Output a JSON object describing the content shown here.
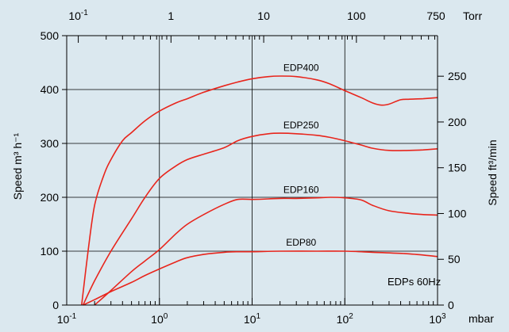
{
  "chart_data": {
    "type": "line",
    "x_scale": "log",
    "xlim": [
      0.1,
      1000
    ],
    "ylim": [
      0,
      500
    ],
    "grid": true,
    "background_color": "#dbe8ef",
    "line_color": "#e8251c",
    "ylabel": "Speed m³ h⁻¹",
    "ylabel_right": "Speed ft³/min",
    "x_unit_bottom": "mbar",
    "x_unit_top": "Torr",
    "annotation": "EDPs 60Hz",
    "x_ticks_bottom": [
      {
        "value": 0.1,
        "base": "10",
        "exp": "-1"
      },
      {
        "value": 1,
        "base": "10",
        "exp": "0"
      },
      {
        "value": 10,
        "base": "10",
        "exp": "1"
      },
      {
        "value": 100,
        "base": "10",
        "exp": "2"
      },
      {
        "value": 1000,
        "base": "10",
        "exp": "3"
      }
    ],
    "x_ticks_top": [
      {
        "label_base": "10",
        "label_exp": "-1",
        "torr": 0.1
      },
      {
        "label_base": "1",
        "label_exp": "",
        "torr": 1
      },
      {
        "label_base": "10",
        "label_exp": "",
        "torr": 10
      },
      {
        "label_base": "100",
        "label_exp": "",
        "torr": 100
      },
      {
        "label_base": "750",
        "label_exp": "",
        "torr": 750
      }
    ],
    "y_ticks_left": [
      0,
      100,
      200,
      300,
      400,
      500
    ],
    "y_ticks_right": [
      {
        "label": "0",
        "value": 0
      },
      {
        "label": "50",
        "value": 50
      },
      {
        "label": "100",
        "value": 100
      },
      {
        "label": "150",
        "value": 150
      },
      {
        "label": "200",
        "value": 200
      },
      {
        "label": "250",
        "value": 250
      }
    ],
    "right_axis_factor": 0.5886,
    "series": [
      {
        "name": "EDP400",
        "x": [
          0.145,
          0.17,
          0.2,
          0.25,
          0.3,
          0.4,
          0.5,
          0.7,
          1,
          1.5,
          2,
          3,
          5,
          7,
          10,
          15,
          20,
          30,
          50,
          70,
          100,
          150,
          200,
          250,
          300,
          400,
          500,
          700,
          1000
        ],
        "y": [
          0,
          100,
          185,
          240,
          270,
          305,
          320,
          342,
          360,
          375,
          383,
          395,
          407,
          414,
          420,
          424,
          425,
          424,
          418,
          410,
          398,
          385,
          375,
          371,
          373,
          381,
          382,
          383,
          385
        ]
      },
      {
        "name": "EDP250",
        "x": [
          0.15,
          0.2,
          0.3,
          0.5,
          0.7,
          1,
          1.5,
          2,
          3,
          5,
          7,
          10,
          15,
          20,
          30,
          50,
          70,
          100,
          150,
          200,
          300,
          500,
          700,
          1000
        ],
        "y": [
          0,
          45,
          100,
          160,
          200,
          235,
          258,
          270,
          280,
          292,
          305,
          313,
          318,
          319,
          318,
          315,
          311,
          305,
          297,
          291,
          287,
          287,
          288,
          290
        ]
      },
      {
        "name": "EDP160",
        "x": [
          0.2,
          0.3,
          0.5,
          0.7,
          1,
          1.5,
          2,
          3,
          5,
          7,
          10,
          15,
          20,
          30,
          50,
          70,
          100,
          150,
          200,
          300,
          500,
          700,
          1000
        ],
        "y": [
          0,
          27,
          62,
          82,
          103,
          132,
          150,
          168,
          187,
          196,
          196,
          197,
          198,
          198,
          199,
          200,
          199,
          195,
          185,
          175,
          170,
          168,
          167
        ]
      },
      {
        "name": "EDP80",
        "x": [
          0.15,
          0.2,
          0.3,
          0.5,
          0.7,
          1,
          1.5,
          2,
          3,
          5,
          7,
          10,
          20,
          50,
          100,
          200,
          500,
          1000
        ],
        "y": [
          0,
          10,
          25,
          42,
          55,
          67,
          80,
          88,
          94,
          98,
          99,
          99,
          100,
          100,
          100,
          98,
          95,
          90
        ]
      }
    ]
  }
}
